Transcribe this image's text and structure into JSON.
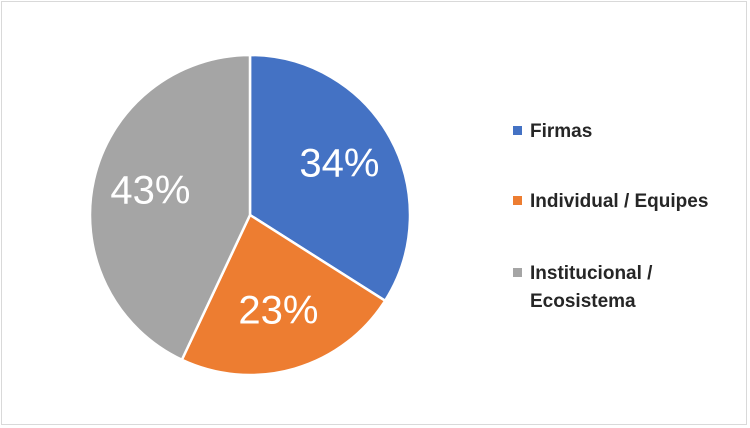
{
  "chart_data": {
    "type": "pie",
    "title": "",
    "categories": [
      "Firmas",
      "Individual / Equipes",
      "Institucional / Ecosistema"
    ],
    "values": [
      34,
      23,
      43
    ],
    "value_labels": [
      "34%",
      "23%",
      "43%"
    ],
    "colors": [
      "#4472C4",
      "#ED7D31",
      "#A5A5A5"
    ],
    "legend": {
      "position": "right",
      "entries": [
        "Firmas",
        "Individual / Equipes",
        "Institucional /\nEcosistema"
      ]
    },
    "start_angle": "12 o'clock",
    "direction": "clockwise"
  }
}
